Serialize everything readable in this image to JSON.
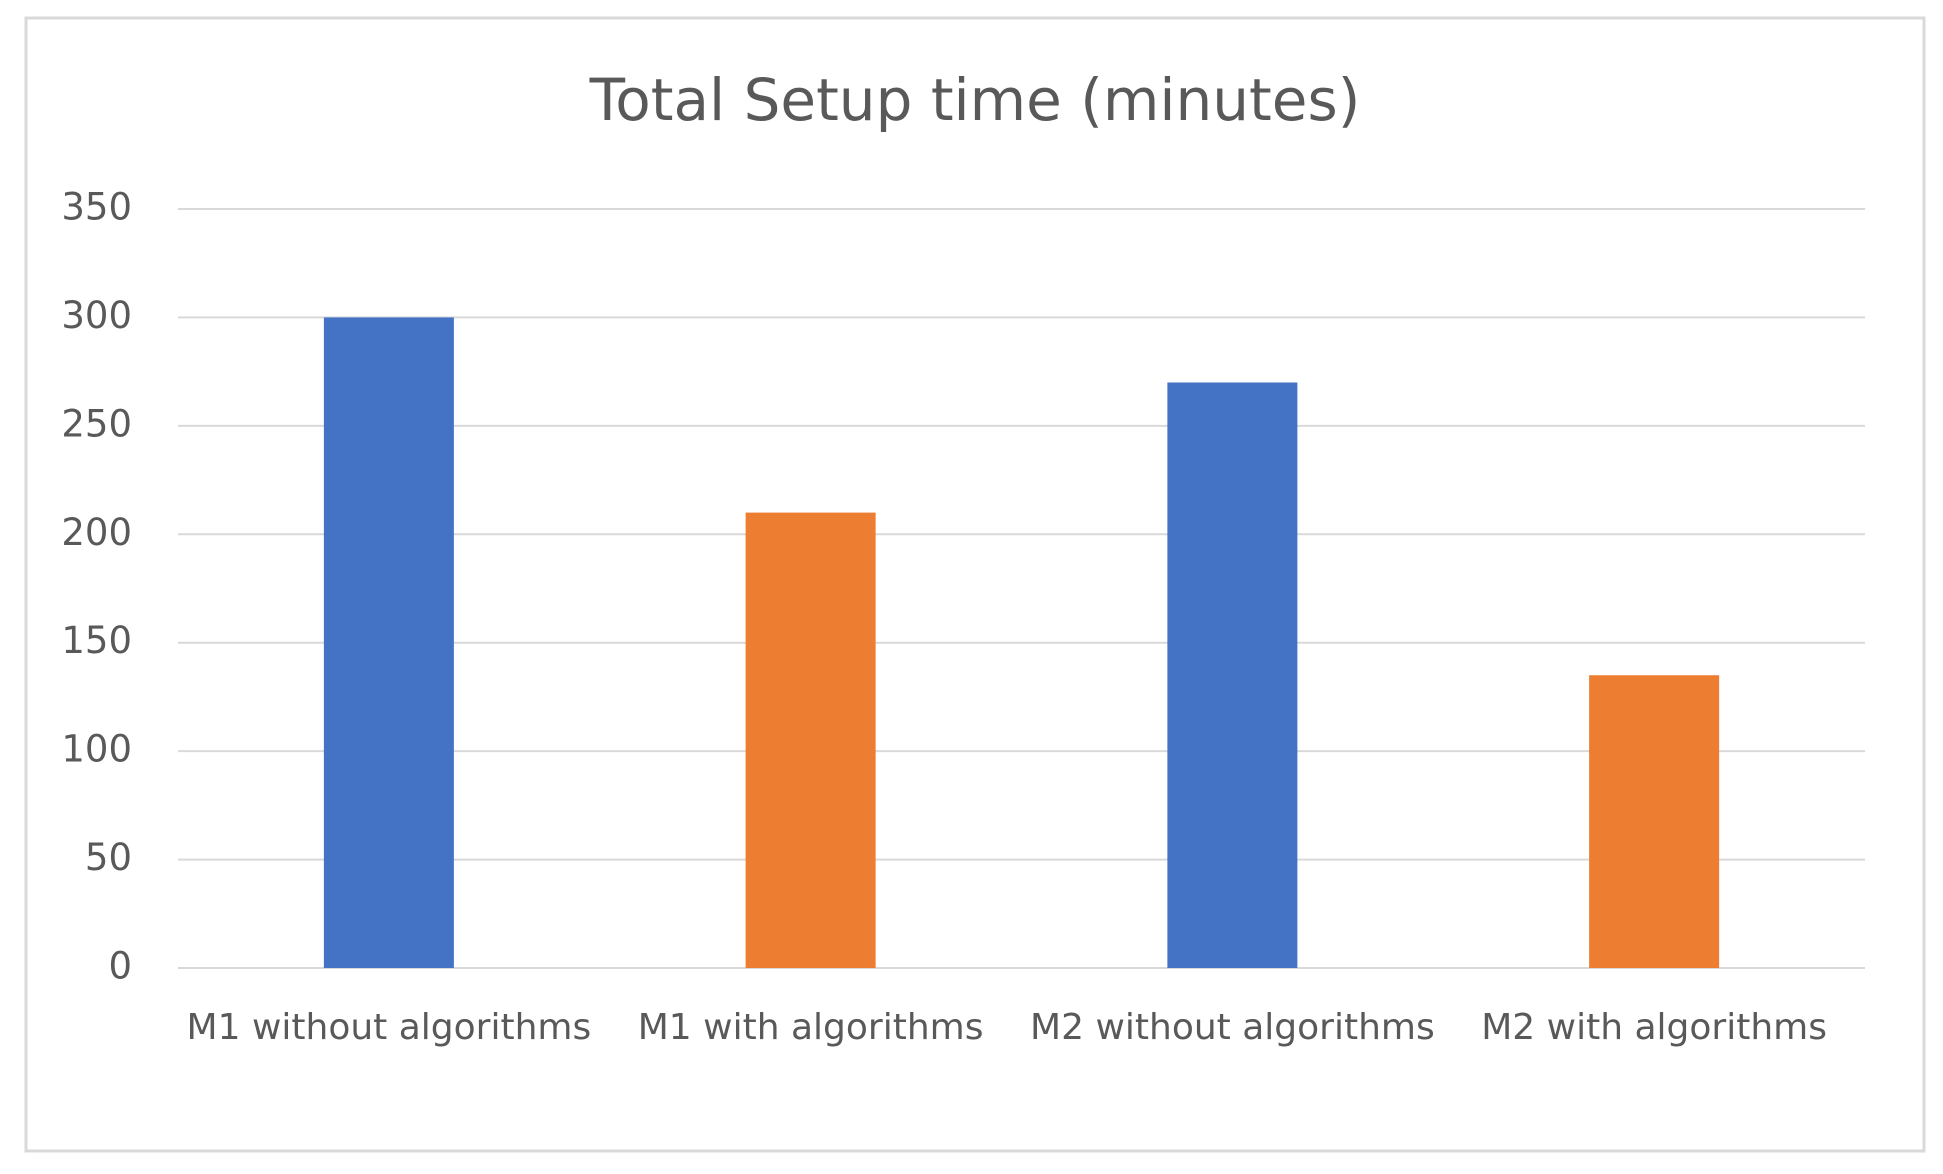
{
  "chart_data": {
    "type": "bar",
    "title": "Total Setup time (minutes)",
    "categories": [
      "M1 without algorithms",
      "M1 with algorithms",
      "M2 without algorithms",
      "M2 with algorithms"
    ],
    "values": [
      300,
      210,
      270,
      135
    ],
    "colors": [
      "#4472c4",
      "#ed7d31",
      "#4472c4",
      "#ed7d31"
    ],
    "ylim": [
      0,
      350
    ],
    "yticks": [
      0,
      50,
      100,
      150,
      200,
      250,
      300,
      350
    ],
    "grid": true
  }
}
